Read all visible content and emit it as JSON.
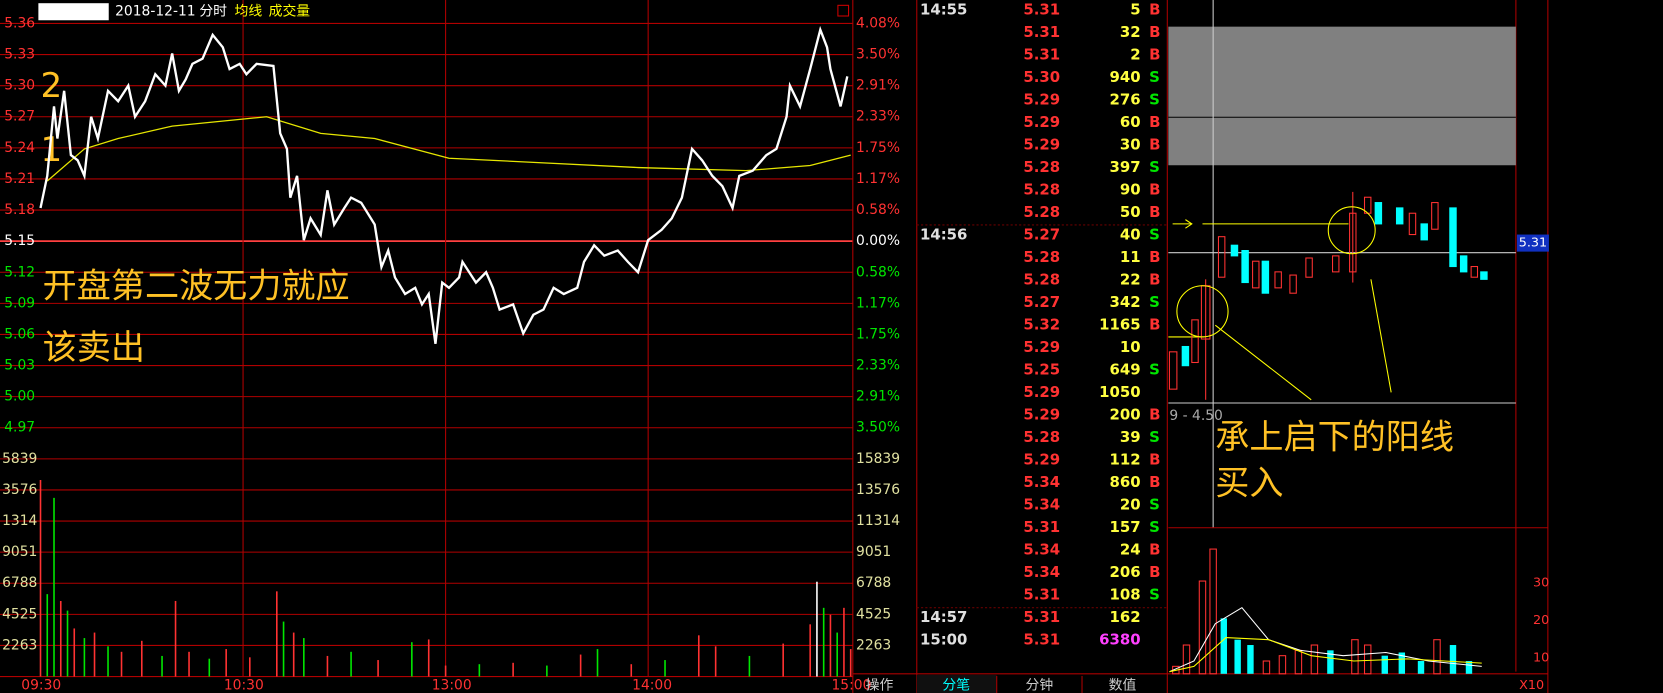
{
  "header": {
    "date": "2018-12-11",
    "mode": "分时",
    "avg": "均线",
    "vol": "成交量"
  },
  "price_chart": {
    "price_ticks": [
      "5.36",
      "5.33",
      "5.30",
      "5.27",
      "5.24",
      "5.21",
      "5.18",
      "5.15",
      "5.12",
      "5.09",
      "5.06",
      "5.03",
      "5.00",
      "4.97"
    ],
    "pct_ticks": [
      "4.08%",
      "3.50%",
      "2.91%",
      "2.33%",
      "1.75%",
      "1.17%",
      "0.58%",
      "0.00%",
      "0.58%",
      "1.17%",
      "1.75%",
      "2.33%",
      "2.91%",
      "3.50%"
    ],
    "volume_ticks_left": [
      "5839",
      "3576",
      "1314",
      "9051",
      "6788",
      "4525",
      "2263"
    ],
    "volume_ticks_right": [
      "15839",
      "13576",
      "11314",
      "9051",
      "6788",
      "4525",
      "2263"
    ],
    "time_ticks": [
      "09:30",
      "10:30",
      "13:00",
      "14:00",
      "15:00"
    ],
    "price": {
      "minutes": [
        0,
        2,
        4,
        5,
        7,
        9,
        11,
        13,
        15,
        17,
        20,
        23,
        26,
        28,
        31,
        34,
        37,
        39,
        41,
        43,
        45,
        48,
        51,
        54,
        56,
        59,
        61,
        64,
        69,
        71,
        73,
        74,
        76,
        78,
        80,
        83,
        85,
        87,
        90,
        92,
        95,
        99,
        101,
        103,
        105,
        108,
        111,
        113,
        115,
        117,
        119,
        121,
        124,
        125,
        129,
        132,
        134,
        136,
        140,
        143,
        146,
        149,
        152,
        155,
        159,
        161,
        164,
        167,
        171,
        174,
        177,
        180,
        184,
        187,
        190,
        193,
        196,
        199,
        202,
        205,
        207,
        211,
        215,
        218,
        221,
        222,
        225,
        228,
        231,
        233,
        234,
        237,
        239
      ],
      "values": [
        5.182,
        5.213,
        5.28,
        5.249,
        5.295,
        5.233,
        5.228,
        5.213,
        5.27,
        5.249,
        5.295,
        5.285,
        5.3,
        5.27,
        5.285,
        5.311,
        5.3,
        5.331,
        5.295,
        5.306,
        5.321,
        5.326,
        5.349,
        5.337,
        5.316,
        5.321,
        5.311,
        5.321,
        5.319,
        5.254,
        5.239,
        5.192,
        5.213,
        5.151,
        5.172,
        5.156,
        5.199,
        5.166,
        5.182,
        5.192,
        5.187,
        5.166,
        5.125,
        5.141,
        5.115,
        5.099,
        5.105,
        5.089,
        5.099,
        5.051,
        5.11,
        5.105,
        5.115,
        5.13,
        5.11,
        5.12,
        5.105,
        5.084,
        5.089,
        5.061,
        5.079,
        5.084,
        5.105,
        5.099,
        5.105,
        5.13,
        5.146,
        5.136,
        5.141,
        5.13,
        5.12,
        5.151,
        5.161,
        5.172,
        5.192,
        5.239,
        5.228,
        5.213,
        5.203,
        5.182,
        5.213,
        5.218,
        5.233,
        5.239,
        5.27,
        5.3,
        5.28,
        5.316,
        5.354,
        5.337,
        5.316,
        5.28,
        5.309
      ]
    },
    "avg": {
      "minutes": [
        2,
        13,
        23,
        39,
        67,
        83,
        99,
        121,
        146,
        177,
        209,
        228,
        240
      ],
      "values": [
        5.208,
        5.239,
        5.249,
        5.261,
        5.27,
        5.254,
        5.249,
        5.23,
        5.226,
        5.221,
        5.218,
        5.223,
        5.233
      ]
    },
    "volume": {
      "minutes": [
        0,
        2,
        4,
        6,
        8,
        10,
        13,
        16,
        20,
        24,
        30,
        36,
        40,
        44,
        50,
        55,
        62,
        70,
        72,
        75,
        78,
        85,
        92,
        100,
        110,
        115,
        120,
        130,
        140,
        150,
        160,
        165,
        175,
        185,
        195,
        200,
        210,
        220,
        228,
        230,
        232,
        234,
        236,
        238,
        240
      ],
      "values": [
        14300,
        6000,
        13000,
        5500,
        4800,
        3500,
        2800,
        3200,
        2200,
        1800,
        2600,
        1500,
        5500,
        1800,
        1300,
        2000,
        1400,
        6200,
        4000,
        3200,
        2800,
        1500,
        1800,
        1200,
        2500,
        2700,
        800,
        900,
        1000,
        800,
        1600,
        2000,
        900,
        1200,
        3000,
        2200,
        1500,
        2400,
        3800,
        6900,
        5000,
        4500,
        3200,
        5000,
        2000
      ],
      "colors": [
        "#ff3232",
        "#00e600",
        "#00e600",
        "#ff3232",
        "#00e600",
        "#ff3232",
        "#00e600",
        "#ff3232",
        "#00e600",
        "#ff3232",
        "#ff3232",
        "#00e600",
        "#ff3232",
        "#ff3232",
        "#00e600",
        "#ff3232",
        "#ff3232",
        "#ff3232",
        "#00e600",
        "#ff3232",
        "#00e600",
        "#ff3232",
        "#00e600",
        "#ff3232",
        "#00e600",
        "#ff3232",
        "#ff3232",
        "#00e600",
        "#ff3232",
        "#00e600",
        "#ff3232",
        "#00e600",
        "#ff3232",
        "#00e600",
        "#ff3232",
        "#ff3232",
        "#00e600",
        "#ff3232",
        "#ff3232",
        "#ffffff",
        "#00e600",
        "#ff3232",
        "#00e600",
        "#ff3232",
        "#ff3232"
      ]
    },
    "annotations": [
      "2",
      "1",
      "开盘第二波无力就应",
      "该卖出"
    ]
  },
  "trades": {
    "rows": [
      {
        "time": "14:55",
        "price": "5.31",
        "volume": "5",
        "side": "B"
      },
      {
        "price": "5.31",
        "volume": "32",
        "side": "B"
      },
      {
        "price": "5.31",
        "volume": "2",
        "side": "B"
      },
      {
        "price": "5.30",
        "volume": "940",
        "side": "S"
      },
      {
        "price": "5.29",
        "volume": "276",
        "side": "S"
      },
      {
        "price": "5.29",
        "volume": "60",
        "side": "B"
      },
      {
        "price": "5.29",
        "volume": "30",
        "side": "B"
      },
      {
        "price": "5.28",
        "volume": "397",
        "side": "S"
      },
      {
        "price": "5.28",
        "volume": "90",
        "side": "B"
      },
      {
        "price": "5.28",
        "volume": "50",
        "side": "B"
      },
      {
        "time": "14:56",
        "price": "5.27",
        "volume": "40",
        "side": "S"
      },
      {
        "price": "5.28",
        "volume": "11",
        "side": "B"
      },
      {
        "price": "5.28",
        "volume": "22",
        "side": "B"
      },
      {
        "price": "5.27",
        "volume": "342",
        "side": "S"
      },
      {
        "price": "5.32",
        "volume": "1165",
        "side": "B"
      },
      {
        "price": "5.29",
        "volume": "10"
      },
      {
        "price": "5.25",
        "volume": "649",
        "side": "S"
      },
      {
        "price": "5.29",
        "volume": "1050"
      },
      {
        "price": "5.29",
        "volume": "200",
        "side": "B"
      },
      {
        "price": "5.28",
        "volume": "39",
        "side": "S"
      },
      {
        "price": "5.29",
        "volume": "112",
        "side": "B"
      },
      {
        "price": "5.34",
        "volume": "860",
        "side": "B"
      },
      {
        "price": "5.34",
        "volume": "20",
        "side": "S"
      },
      {
        "price": "5.31",
        "volume": "157",
        "side": "S"
      },
      {
        "price": "5.34",
        "volume": "24",
        "side": "B"
      },
      {
        "price": "5.34",
        "volume": "206",
        "side": "B"
      },
      {
        "price": "5.31",
        "volume": "108",
        "side": "S"
      },
      {
        "time": "14:57",
        "price": "5.31",
        "volume": "162"
      },
      {
        "time": "15:00",
        "price": "5.31",
        "volume": "6380"
      }
    ]
  },
  "tabs": [
    "操作",
    "分笔",
    "分钟",
    "数值"
  ],
  "side_chart": {
    "price_tag": "5.31",
    "range_label": "9 - 4.50",
    "annotation": [
      "承上启下的阳线",
      "买入"
    ],
    "volume_ticks": [
      "30",
      "20",
      "10"
    ],
    "corner": "X10"
  }
}
